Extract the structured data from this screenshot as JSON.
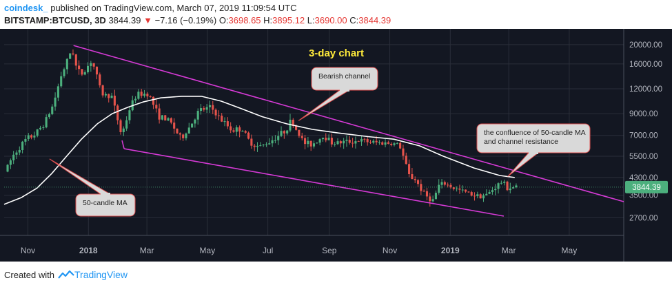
{
  "header": {
    "author": "coindesk_",
    "published_text": "published on TradingView.com, March 07, 2019 11:09:54 UTC",
    "symbol": "BITSTAMP:BTCUSD, 3D",
    "last_price": "3844.39",
    "change_arrow": "▼",
    "change": "−7.16 (−0.19%)",
    "o_label": "O:",
    "o_value": "3698.65",
    "h_label": "H:",
    "h_value": "3895.12",
    "l_label": "L:",
    "l_value": "3690.00",
    "c_label": "C:",
    "c_value": "3844.39"
  },
  "footer": {
    "created_with": "Created with",
    "brand": "TradingView"
  },
  "colors": {
    "background": "#131722",
    "grid": "#2a2e39",
    "up": "#4caf7d",
    "down": "#e5534b",
    "ma": "#ffffff",
    "channel": "#d63ad6",
    "title": "#ffeb3b",
    "price_badge": "#4caf7d"
  },
  "chart_data": {
    "type": "candlestick",
    "title": "3-day chart",
    "y_scale": "log",
    "ylim": [
      2200,
      24000
    ],
    "x_range": [
      "2017-10-08",
      "2019-06-25"
    ],
    "y_ticks": [
      "20000.00",
      "16000.00",
      "12000.00",
      "9000.00",
      "7000.00",
      "5500.00",
      "4300.00",
      "3500.00",
      "2700.00"
    ],
    "x_ticks": [
      {
        "label": "Nov",
        "date": "2017-11-01"
      },
      {
        "label": "2018",
        "date": "2018-01-01",
        "bold": true
      },
      {
        "label": "Mar",
        "date": "2018-03-01"
      },
      {
        "label": "May",
        "date": "2018-05-01"
      },
      {
        "label": "Jul",
        "date": "2018-07-01"
      },
      {
        "label": "Sep",
        "date": "2018-09-01"
      },
      {
        "label": "Nov",
        "date": "2018-11-01"
      },
      {
        "label": "2019",
        "date": "2019-01-01",
        "bold": true
      },
      {
        "label": "Mar",
        "date": "2019-03-01"
      },
      {
        "label": "May",
        "date": "2019-05-01"
      }
    ],
    "last_price_label": "3844.39",
    "price_path": [
      [
        "2017-10-10",
        4600
      ],
      [
        "2017-10-20",
        5700
      ],
      [
        "2017-11-01",
        6700
      ],
      [
        "2017-11-10",
        7100
      ],
      [
        "2017-11-20",
        8200
      ],
      [
        "2017-11-28",
        10000
      ],
      [
        "2017-12-06",
        14000
      ],
      [
        "2017-12-12",
        16500
      ],
      [
        "2017-12-17",
        19300
      ],
      [
        "2017-12-22",
        14800
      ],
      [
        "2017-12-28",
        14300
      ],
      [
        "2018-01-06",
        16800
      ],
      [
        "2018-01-16",
        11300
      ],
      [
        "2018-01-26",
        11000
      ],
      [
        "2018-02-05",
        7000
      ],
      [
        "2018-02-14",
        9800
      ],
      [
        "2018-02-20",
        11200
      ],
      [
        "2018-03-04",
        11400
      ],
      [
        "2018-03-14",
        8800
      ],
      [
        "2018-03-26",
        8200
      ],
      [
        "2018-04-06",
        6700
      ],
      [
        "2018-04-15",
        7800
      ],
      [
        "2018-04-24",
        9300
      ],
      [
        "2018-05-06",
        9700
      ],
      [
        "2018-05-16",
        8400
      ],
      [
        "2018-05-28",
        7400
      ],
      [
        "2018-06-06",
        7600
      ],
      [
        "2018-06-14",
        6500
      ],
      [
        "2018-06-24",
        6100
      ],
      [
        "2018-07-06",
        6600
      ],
      [
        "2018-07-20",
        7400
      ],
      [
        "2018-07-26",
        8300
      ],
      [
        "2018-08-08",
        6400
      ],
      [
        "2018-08-16",
        6300
      ],
      [
        "2018-08-28",
        7000
      ],
      [
        "2018-09-06",
        6400
      ],
      [
        "2018-09-20",
        6500
      ],
      [
        "2018-10-04",
        6600
      ],
      [
        "2018-10-16",
        6450
      ],
      [
        "2018-11-02",
        6400
      ],
      [
        "2018-11-12",
        6300
      ],
      [
        "2018-11-16",
        5500
      ],
      [
        "2018-11-22",
        4400
      ],
      [
        "2018-11-28",
        4200
      ],
      [
        "2018-12-08",
        3500
      ],
      [
        "2018-12-16",
        3300
      ],
      [
        "2018-12-22",
        3900
      ],
      [
        "2018-12-28",
        4000
      ],
      [
        "2019-01-06",
        3800
      ],
      [
        "2019-01-16",
        3650
      ],
      [
        "2019-01-28",
        3500
      ],
      [
        "2019-02-08",
        3500
      ],
      [
        "2019-02-18",
        3900
      ],
      [
        "2019-02-24",
        4100
      ],
      [
        "2019-03-01",
        3820
      ],
      [
        "2019-03-07",
        3844
      ]
    ],
    "ma_50": [
      [
        "2017-10-08",
        3150
      ],
      [
        "2017-10-25",
        3400
      ],
      [
        "2017-11-10",
        3800
      ],
      [
        "2017-11-25",
        4500
      ],
      [
        "2017-12-10",
        5500
      ],
      [
        "2017-12-25",
        6700
      ],
      [
        "2018-01-10",
        8000
      ],
      [
        "2018-01-25",
        9000
      ],
      [
        "2018-02-10",
        9700
      ],
      [
        "2018-02-25",
        10300
      ],
      [
        "2018-03-15",
        10800
      ],
      [
        "2018-04-05",
        11000
      ],
      [
        "2018-04-25",
        11000
      ],
      [
        "2018-05-15",
        10400
      ],
      [
        "2018-06-05",
        9500
      ],
      [
        "2018-06-25",
        8700
      ],
      [
        "2018-07-20",
        8000
      ],
      [
        "2018-08-15",
        7500
      ],
      [
        "2018-09-10",
        7200
      ],
      [
        "2018-10-10",
        6900
      ],
      [
        "2018-11-05",
        6700
      ],
      [
        "2018-12-01",
        6200
      ],
      [
        "2018-12-25",
        5500
      ],
      [
        "2019-01-25",
        4800
      ],
      [
        "2019-02-20",
        4400
      ],
      [
        "2019-03-07",
        4300
      ]
    ],
    "channel_upper": [
      [
        "2017-12-17",
        19800
      ],
      [
        "2019-06-25",
        3250
      ]
    ],
    "channel_lower": [
      [
        "2018-02-06",
        6000
      ],
      [
        "2019-02-24",
        2750
      ]
    ],
    "annotations": [
      {
        "text": "Bearish channel",
        "anchor": [
          "2018-08-01",
          8300
        ]
      },
      {
        "text": "the confluence of 50-candle MA and channel resistance",
        "anchor": [
          "2019-02-28",
          4350
        ]
      },
      {
        "text": "50-candle MA",
        "anchor": [
          "2017-11-20",
          5500
        ]
      }
    ]
  }
}
